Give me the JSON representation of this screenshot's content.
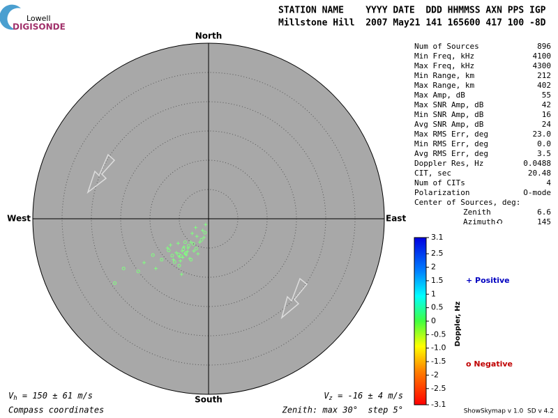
{
  "logo": {
    "top": "Lowell",
    "bottom": "DIGISONDE"
  },
  "header": {
    "line1": "STATION NAME    YYYY DATE  DDD HHMMSS AXN PPS IGP",
    "line2": "Millstone Hill  2007 May21 141 165600 417 100 -8D"
  },
  "compass": {
    "north": "North",
    "south": "South",
    "east": "East",
    "west": "West"
  },
  "stats": {
    "rows": [
      [
        "Num of Sources",
        "896"
      ],
      [
        "Min Freq, kHz",
        "4100"
      ],
      [
        "Max Freq, kHz",
        "4300"
      ],
      [
        "Min Range, km",
        "212"
      ],
      [
        "Max Range, km",
        "402"
      ],
      [
        "Max Amp, dB",
        "55"
      ],
      [
        "Max SNR Amp, dB",
        "42"
      ],
      [
        "Min SNR Amp, dB",
        "16"
      ],
      [
        "Avg SNR Amp, dB",
        "24"
      ],
      [
        "Max RMS Err, deg",
        "23.0"
      ],
      [
        "Min RMS Err, deg",
        "0.0"
      ],
      [
        "Avg RMS Err, deg",
        "3.5"
      ],
      [
        "Doppler Res, Hz",
        "0.0488"
      ],
      [
        "CIT, sec",
        "20.48"
      ],
      [
        "Num of CITs",
        "4"
      ],
      [
        "Polarization",
        "O-mode"
      ]
    ],
    "center_title": "Center of Sources, deg:",
    "center_rows": [
      [
        "Zenith",
        "6.6"
      ],
      [
        "Azimuth",
        "145"
      ]
    ]
  },
  "colorbar": {
    "label": "Doppler, Hz",
    "clim": [
      -3.1,
      3.1
    ],
    "ticks": [
      3.1,
      2.5,
      2,
      1.5,
      1,
      0.5,
      0,
      {
        "value": -0.5,
        "label": "-0.5"
      },
      {
        "value": -1,
        "label": "-1.0"
      },
      {
        "value": -1.5,
        "label": "-1.5"
      },
      {
        "value": -2,
        "label": "-2"
      },
      {
        "value": -2.5,
        "label": "-2.5"
      },
      {
        "value": -3.1,
        "label": "-3.1"
      }
    ]
  },
  "legend": {
    "positive": "+ Positive",
    "negative": "o Negative"
  },
  "skymap": {
    "rlim": [
      0,
      30
    ],
    "rticks": [
      5,
      10,
      15,
      20,
      25
    ],
    "color": "#80ff80",
    "positive": {
      "x": [
        -4.5,
        -4,
        -3.5,
        -5,
        -3,
        -2,
        -1,
        -0.5,
        -6,
        -7,
        -9,
        -4.2,
        -3.8,
        -5.5,
        -2.5,
        -1.5,
        -4.8,
        -3.2,
        -6.5,
        -2.8,
        -1.8,
        -5.2,
        -4.6,
        -11,
        -3.6,
        -4.4,
        -0.8,
        -2.2
      ],
      "y": [
        -5.5,
        -6,
        -5,
        -6.5,
        -4,
        -3,
        -2,
        -1,
        -7,
        -5,
        -8.5,
        -4.8,
        -6.2,
        -5.8,
        -5.5,
        -4,
        -7.2,
        -6.8,
        -4.5,
        -2.5,
        -6,
        -4.2,
        -9.5,
        -7.5,
        -5.6,
        -6.6,
        -3.2,
        -1.5
      ]
    },
    "negative": {
      "x": [
        -4.3,
        -3.9,
        -5.1,
        -3.4,
        -4.7,
        -6.2,
        -2.6,
        -5.8,
        -8,
        -9.5,
        -16,
        -14.5,
        -12,
        -3,
        -1.2,
        -0.6,
        -2.1,
        -6.8,
        -4,
        -5
      ],
      "y": [
        -5.2,
        -5.9,
        -6.1,
        -4.6,
        -6.4,
        -6.3,
        -4.3,
        -7.4,
        -7,
        -6.2,
        -11,
        -8.5,
        -9,
        -7,
        -3.6,
        -2.4,
        -5.1,
        -5.4,
        -4,
        -8
      ]
    }
  },
  "footer": {
    "vh_symbol": "V",
    "vh_sub": "h",
    "vh_text": " = 150 ± 61 m/s",
    "vz_symbol": "V",
    "vz_sub": "z",
    "vz_text": " = -16 ± 4 m/s",
    "coords": "Compass coordinates",
    "zenith": "Zenith: max 30°  step 5°",
    "version": "ShowSkymap v 1.0  SD v 4.2"
  }
}
